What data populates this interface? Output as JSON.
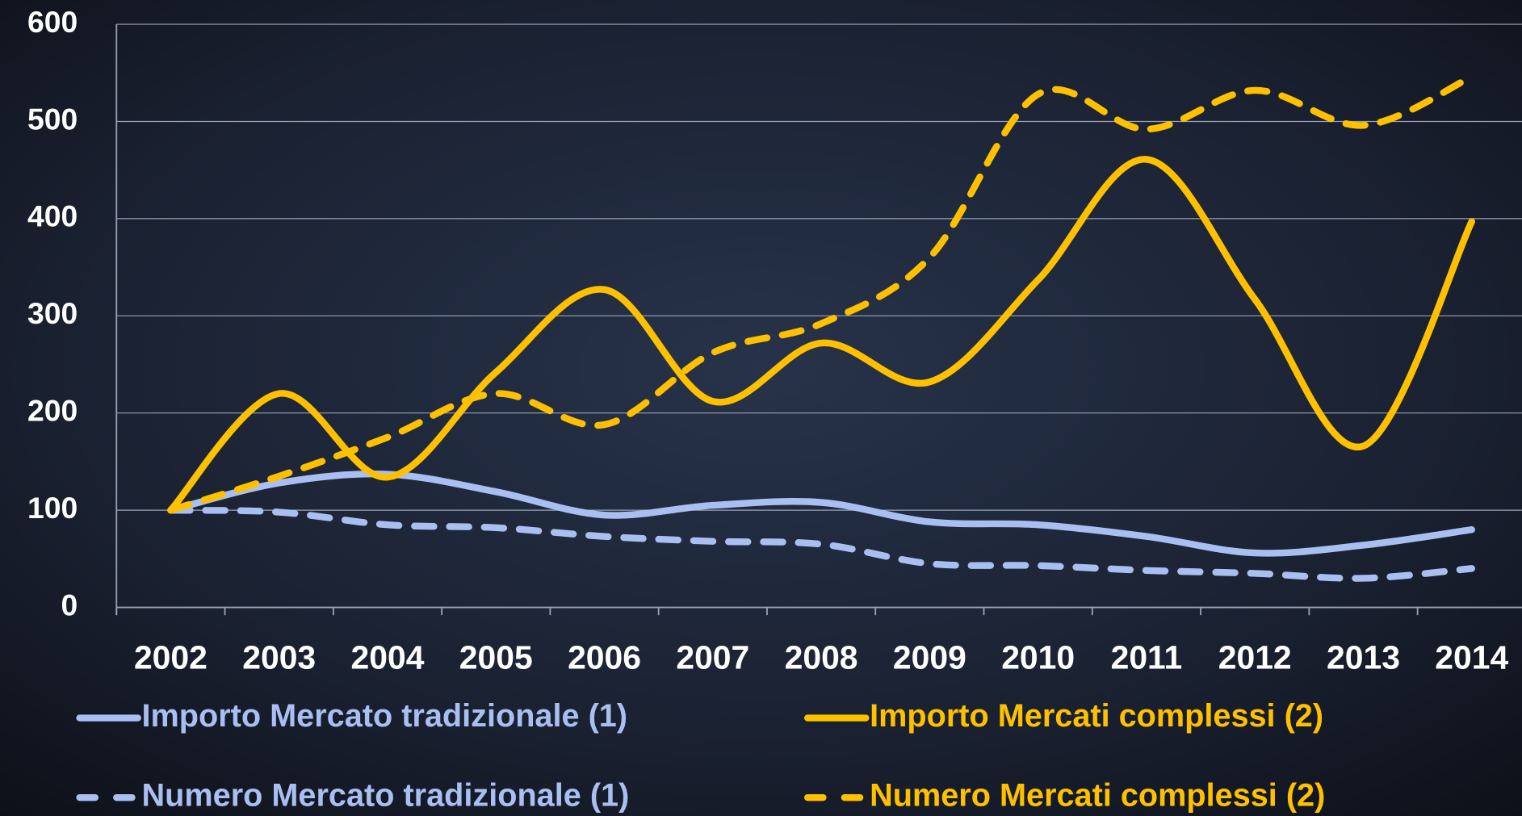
{
  "chart_data": {
    "type": "line",
    "categories": [
      "2002",
      "2003",
      "2004",
      "2005",
      "2006",
      "2007",
      "2008",
      "2009",
      "2010",
      "2011",
      "2012",
      "2013",
      "2014"
    ],
    "series": [
      {
        "name": "Importo Mercato tradizionale (1)",
        "color": "#a9bff2",
        "dashed": false,
        "values": [
          100,
          128,
          137,
          119,
          95,
          105,
          108,
          88,
          85,
          73,
          56,
          64,
          80
        ]
      },
      {
        "name": "Importo Mercati complessi (2)",
        "color": "#ffc000",
        "dashed": false,
        "values": [
          100,
          220,
          134,
          242,
          327,
          212,
          272,
          232,
          337,
          461,
          317,
          166,
          397
        ]
      },
      {
        "name": "Numero Mercato tradizionale (1)",
        "color": "#a9bff2",
        "dashed": true,
        "values": [
          100,
          98,
          85,
          82,
          73,
          68,
          65,
          45,
          43,
          38,
          35,
          30,
          40
        ]
      },
      {
        "name": "Numero Mercati complessi (2)",
        "color": "#ffc000",
        "dashed": true,
        "values": [
          100,
          135,
          175,
          220,
          188,
          262,
          292,
          360,
          528,
          492,
          532,
          496,
          546
        ]
      }
    ],
    "ylim": [
      0,
      600
    ],
    "yticks": [
      0,
      100,
      200,
      300,
      400,
      500,
      600
    ],
    "grid": true,
    "legend": "bottom"
  }
}
